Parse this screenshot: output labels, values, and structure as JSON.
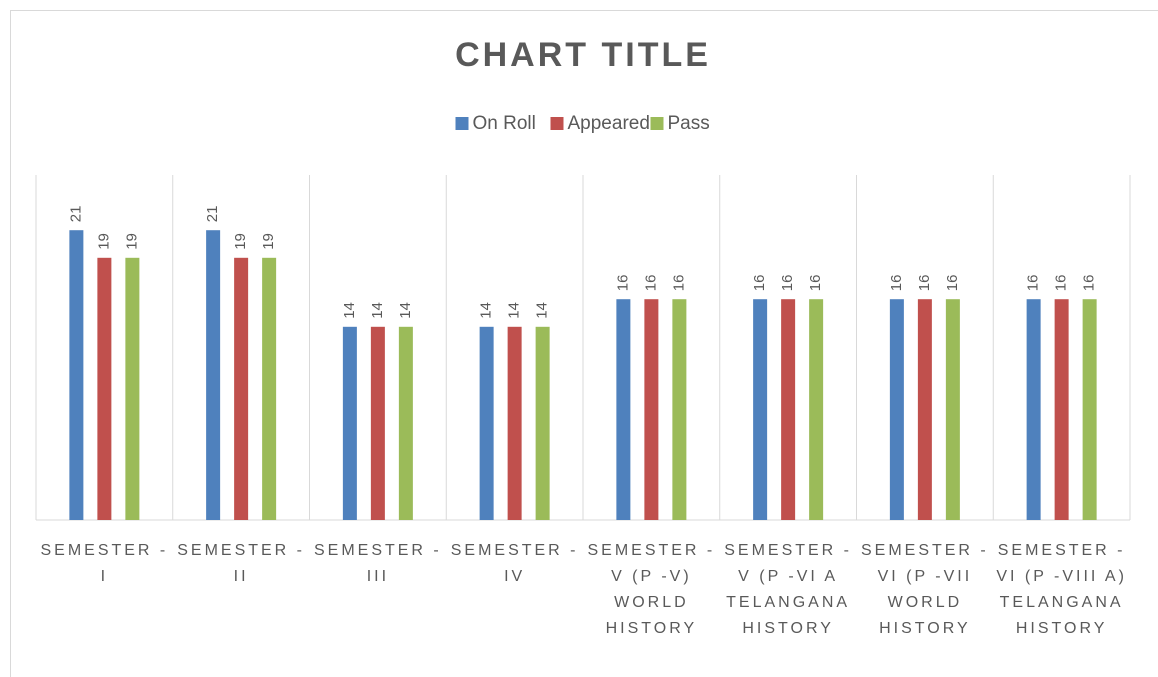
{
  "chart_data": {
    "type": "bar",
    "title": "CHART TITLE",
    "categories": [
      "SEMESTER - I",
      "SEMESTER - II",
      "SEMESTER - III",
      "SEMESTER - IV",
      "SEMESTER - V (P -V) WORLD HISTORY",
      "SEMESTER - V (P -VI A TELANGANA HISTORY",
      "SEMESTER - VI (P -VII WORLD HISTORY",
      "SEMESTER - VI (P -VIII A) TELANGANA HISTORY"
    ],
    "series": [
      {
        "name": "On Roll",
        "color": "#4f81bd",
        "values": [
          21,
          21,
          14,
          14,
          16,
          16,
          16,
          16
        ]
      },
      {
        "name": "Appeared",
        "color": "#c0504d",
        "values": [
          19,
          19,
          14,
          14,
          16,
          16,
          16,
          16
        ]
      },
      {
        "name": "Pass",
        "color": "#9bbb59",
        "values": [
          19,
          19,
          14,
          14,
          16,
          16,
          16,
          16
        ]
      }
    ],
    "ylim": [
      0,
      25
    ],
    "legend": "top"
  }
}
